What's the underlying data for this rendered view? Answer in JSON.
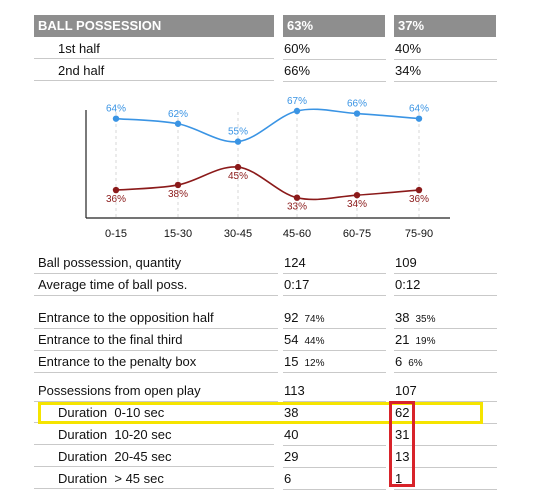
{
  "possession": {
    "title": "BALL POSSESSION",
    "team1": "63%",
    "team2": "37%",
    "rows": [
      {
        "label": "1st half",
        "t1": "60%",
        "t2": "40%"
      },
      {
        "label": "2nd half",
        "t1": "66%",
        "t2": "34%"
      }
    ]
  },
  "chart_data": {
    "type": "line",
    "categories": [
      "0-15",
      "15-30",
      "30-45",
      "45-60",
      "60-75",
      "75-90"
    ],
    "series": [
      {
        "values": [
          64,
          62,
          55,
          67,
          66,
          64
        ],
        "labels": [
          "64%",
          "62%",
          "55%",
          "67%",
          "66%",
          "64%"
        ],
        "color": "#3a94e4"
      },
      {
        "values": [
          36,
          38,
          45,
          33,
          34,
          36
        ],
        "labels": [
          "36%",
          "38%",
          "45%",
          "33%",
          "34%",
          "36%"
        ],
        "color": "#8b1a1a"
      }
    ],
    "grid": false
  },
  "stats": {
    "group1": [
      {
        "label": "Ball possession, quantity",
        "t1": "124",
        "t2": "109"
      },
      {
        "label": "Average time of ball poss.",
        "t1": "0:17",
        "t2": "0:12"
      }
    ],
    "group2": [
      {
        "label": "Entrance to the opposition half",
        "t1": "92",
        "t1p": "74%",
        "t2": "38",
        "t2p": "35%"
      },
      {
        "label": "Entrance to the final third",
        "t1": "54",
        "t1p": "44%",
        "t2": "21",
        "t2p": "19%"
      },
      {
        "label": "Entrance to the penalty box",
        "t1": "15",
        "t1p": "12%",
        "t2": "6",
        "t2p": "6%"
      }
    ],
    "group3": [
      {
        "label": "Possessions from open play",
        "t1": "113",
        "t2": "107"
      },
      {
        "label": "Duration  0-10 sec",
        "t1": "38",
        "t2": "62"
      },
      {
        "label": "Duration  10-20 sec",
        "t1": "40",
        "t2": "31"
      },
      {
        "label": "Duration  20-45 sec",
        "t1": "29",
        "t2": "13"
      },
      {
        "label": "Duration  > 45 sec",
        "t1": "6",
        "t2": "1"
      }
    ]
  },
  "colors": {
    "header_bg": "#8e8e8e",
    "highlight_yellow": "#f5e400",
    "highlight_red": "#d8232a"
  }
}
